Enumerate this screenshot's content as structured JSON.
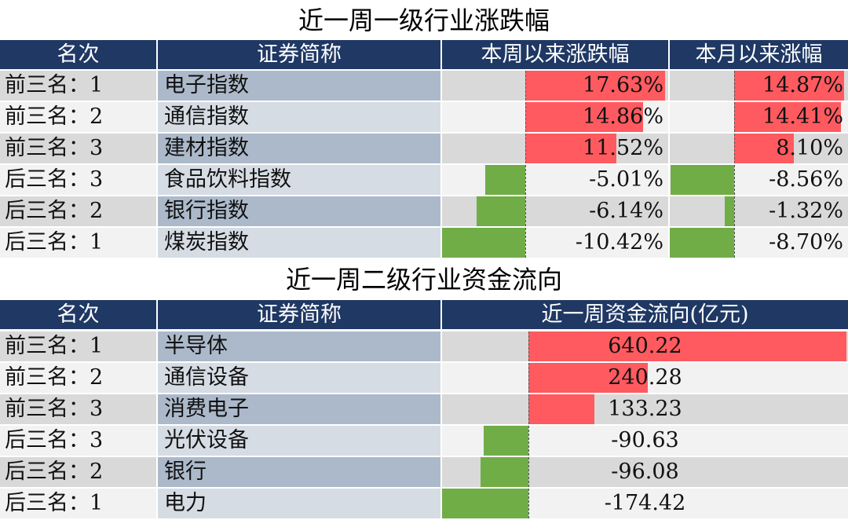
{
  "table1": {
    "title": "近一周一级行业涨跌幅",
    "headers": [
      "名次",
      "证券简称",
      "本周以来涨跌幅",
      "本月以来涨幅"
    ],
    "rows": [
      {
        "rank": "前三名：1",
        "name": "电子指数",
        "week": "17.63%",
        "month": "14.87%",
        "week_v": 17.63,
        "month_v": 14.87
      },
      {
        "rank": "前三名：2",
        "name": "通信指数",
        "week": "14.86%",
        "month": "14.41%",
        "week_v": 14.86,
        "month_v": 14.41
      },
      {
        "rank": "前三名：3",
        "name": "建材指数",
        "week": "11.52%",
        "month": "8.10%",
        "week_v": 11.52,
        "month_v": 8.1
      },
      {
        "rank": "后三名：3",
        "name": "食品饮料指数",
        "week": "-5.01%",
        "month": "-8.56%",
        "week_v": -5.01,
        "month_v": -8.56
      },
      {
        "rank": "后三名：2",
        "name": "银行指数",
        "week": "-6.14%",
        "month": "-1.32%",
        "week_v": -6.14,
        "month_v": -1.32
      },
      {
        "rank": "后三名：1",
        "name": "煤炭指数",
        "week": "-10.42%",
        "month": "-8.70%",
        "week_v": -10.42,
        "month_v": -8.7
      }
    ]
  },
  "table2": {
    "title": "近一周二级行业资金流向",
    "headers": [
      "名次",
      "证券简称",
      "近一周资金流向(亿元)"
    ],
    "rows": [
      {
        "rank": "前三名：1",
        "name": "半导体",
        "flow": "640.22",
        "flow_v": 640.22
      },
      {
        "rank": "前三名：2",
        "name": "通信设备",
        "flow": "240.28",
        "flow_v": 240.28
      },
      {
        "rank": "前三名：3",
        "name": "消费电子",
        "flow": "133.23",
        "flow_v": 133.23
      },
      {
        "rank": "后三名：3",
        "name": "光伏设备",
        "flow": "-90.63",
        "flow_v": -90.63
      },
      {
        "rank": "后三名：2",
        "name": "银行",
        "flow": "-96.08",
        "flow_v": -96.08
      },
      {
        "rank": "后三名：1",
        "name": "电力",
        "flow": "-174.42",
        "flow_v": -174.42
      }
    ]
  },
  "colors": {
    "header_bg": "#1f3864",
    "positive": "#ff5a5f",
    "negative": "#70ad47"
  }
}
